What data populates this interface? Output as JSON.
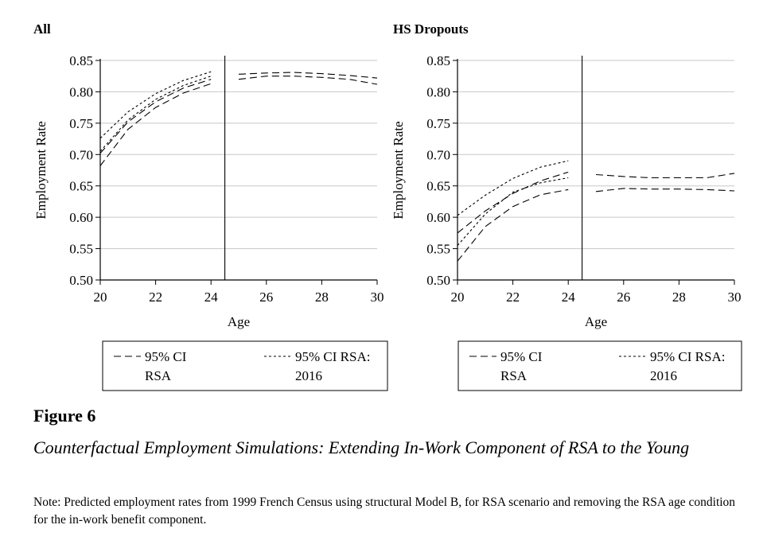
{
  "figure": {
    "label": "Figure 6",
    "title": "Counterfactual Employment Simulations: Extending In-Work Component of RSA to the Young",
    "note": "Note: Predicted employment rates from 1999 French Census using structural Model B, for RSA scenario and removing the RSA age condition for the in-work benefit component."
  },
  "chart_data": [
    {
      "type": "line",
      "title": "All",
      "xlabel": "Age",
      "ylabel": "Employment Rate",
      "xlim": [
        20,
        30
      ],
      "ylim": [
        0.5,
        0.85
      ],
      "xticks": [
        "20",
        "22",
        "24",
        "26",
        "28",
        "30"
      ],
      "yticks": [
        "0.50",
        "0.55",
        "0.60",
        "0.65",
        "0.70",
        "0.75",
        "0.80",
        "0.85"
      ],
      "grid": "horizontal",
      "vline_x": 24.5,
      "legend": {
        "placement": "bottom",
        "entries": [
          {
            "style": "long-dash",
            "line1": "95% CI",
            "line2": "RSA"
          },
          {
            "style": "short-dash",
            "line1": "95% CI RSA:",
            "line2": "2016"
          }
        ]
      },
      "series": [
        {
          "style": "long-dash",
          "x": [
            20,
            21,
            22,
            23,
            24
          ],
          "y": [
            0.682,
            0.74,
            0.775,
            0.798,
            0.813
          ]
        },
        {
          "style": "long-dash",
          "x": [
            20,
            21,
            22,
            23,
            24
          ],
          "y": [
            0.702,
            0.752,
            0.784,
            0.806,
            0.82
          ]
        },
        {
          "style": "short-dash",
          "x": [
            20,
            21,
            22,
            23,
            24
          ],
          "y": [
            0.705,
            0.755,
            0.788,
            0.81,
            0.825
          ]
        },
        {
          "style": "short-dash",
          "x": [
            20,
            21,
            22,
            23,
            24
          ],
          "y": [
            0.726,
            0.768,
            0.797,
            0.818,
            0.832
          ]
        },
        {
          "style": "long-dash",
          "x": [
            25,
            26,
            27,
            28,
            29,
            30
          ],
          "y": [
            0.82,
            0.825,
            0.825,
            0.823,
            0.82,
            0.812
          ]
        },
        {
          "style": "long-dash",
          "x": [
            25,
            26,
            27,
            28,
            29,
            30
          ],
          "y": [
            0.828,
            0.83,
            0.831,
            0.829,
            0.826,
            0.822
          ]
        }
      ]
    },
    {
      "type": "line",
      "title": "HS Dropouts",
      "xlabel": "Age",
      "ylabel": "Employment Rate",
      "xlim": [
        20,
        30
      ],
      "ylim": [
        0.5,
        0.85
      ],
      "xticks": [
        "20",
        "22",
        "24",
        "26",
        "28",
        "30"
      ],
      "yticks": [
        "0.50",
        "0.55",
        "0.60",
        "0.65",
        "0.70",
        "0.75",
        "0.80",
        "0.85"
      ],
      "grid": "horizontal",
      "vline_x": 24.5,
      "legend": {
        "placement": "bottom",
        "entries": [
          {
            "style": "long-dash",
            "line1": "95% CI",
            "line2": "RSA"
          },
          {
            "style": "short-dash",
            "line1": "95% CI RSA:",
            "line2": "2016"
          }
        ]
      },
      "series": [
        {
          "style": "long-dash",
          "x": [
            20,
            21,
            22,
            23,
            24
          ],
          "y": [
            0.53,
            0.585,
            0.617,
            0.636,
            0.644
          ]
        },
        {
          "style": "long-dash",
          "x": [
            20,
            21,
            22,
            23,
            24
          ],
          "y": [
            0.575,
            0.61,
            0.638,
            0.658,
            0.672
          ]
        },
        {
          "style": "short-dash",
          "x": [
            20,
            21,
            22,
            23,
            24
          ],
          "y": [
            0.555,
            0.605,
            0.64,
            0.655,
            0.663
          ]
        },
        {
          "style": "short-dash",
          "x": [
            20,
            21,
            22,
            23,
            24
          ],
          "y": [
            0.603,
            0.635,
            0.662,
            0.68,
            0.69
          ]
        },
        {
          "style": "long-dash",
          "x": [
            25,
            26,
            27,
            28,
            29,
            30
          ],
          "y": [
            0.641,
            0.646,
            0.645,
            0.645,
            0.644,
            0.642
          ]
        },
        {
          "style": "long-dash",
          "x": [
            25,
            26,
            27,
            28,
            29,
            30
          ],
          "y": [
            0.668,
            0.665,
            0.663,
            0.663,
            0.663,
            0.67
          ]
        }
      ]
    }
  ]
}
